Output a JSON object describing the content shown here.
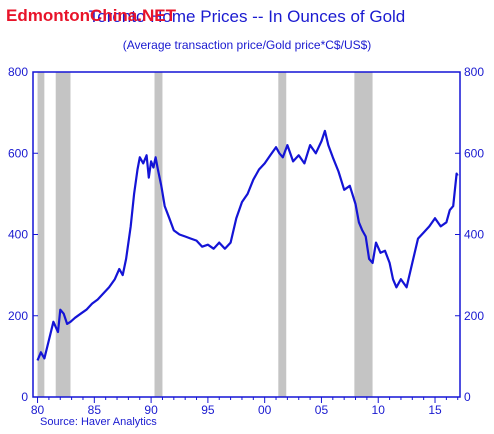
{
  "watermark": "EdmontonChina.NET",
  "chart_data": {
    "type": "line",
    "title": "Toronto Home Prices -- In Ounces of Gold",
    "subtitle": "(Average transaction price/Gold price*C$/US$)",
    "source": "Source: Haver Analytics",
    "ylim": [
      0,
      800
    ],
    "xlim": [
      1979.6,
      2017.2
    ],
    "y_ticks": [
      0,
      200,
      400,
      600,
      800
    ],
    "y_tick_labels": [
      "0",
      "200",
      "400",
      "600",
      "800"
    ],
    "x_ticks": [
      1980,
      1985,
      1990,
      1995,
      2000,
      2005,
      2010,
      2015
    ],
    "x_tick_labels": [
      "80",
      "85",
      "90",
      "95",
      "00",
      "05",
      "10",
      "15"
    ],
    "recessions": [
      [
        1980.0,
        1980.6
      ],
      [
        1981.6,
        1982.9
      ],
      [
        1990.3,
        1991.0
      ],
      [
        2001.2,
        2001.9
      ],
      [
        2007.9,
        2009.5
      ]
    ],
    "series": [
      {
        "color": "#1414d6",
        "x": [
          1980.0,
          1980.3,
          1980.6,
          1981.0,
          1981.4,
          1981.8,
          1982.0,
          1982.3,
          1982.6,
          1982.9,
          1983.3,
          1983.8,
          1984.3,
          1984.8,
          1985.3,
          1985.8,
          1986.3,
          1986.8,
          1987.2,
          1987.5,
          1987.8,
          1988.2,
          1988.5,
          1988.8,
          1989.0,
          1989.3,
          1989.6,
          1989.8,
          1990.0,
          1990.2,
          1990.4,
          1990.6,
          1990.9,
          1991.2,
          1991.6,
          1992.0,
          1992.5,
          1993.0,
          1993.5,
          1994.0,
          1994.5,
          1995.0,
          1995.5,
          1996.0,
          1996.5,
          1997.0,
          1997.5,
          1998.0,
          1998.5,
          1999.0,
          1999.5,
          2000.0,
          2000.5,
          2001.0,
          2001.3,
          2001.6,
          2002.0,
          2002.5,
          2003.0,
          2003.5,
          2004.0,
          2004.5,
          2005.0,
          2005.3,
          2005.6,
          2006.0,
          2006.5,
          2007.0,
          2007.5,
          2008.0,
          2008.3,
          2008.6,
          2008.9,
          2009.2,
          2009.5,
          2009.8,
          2010.2,
          2010.6,
          2011.0,
          2011.3,
          2011.6,
          2012.0,
          2012.5,
          2013.0,
          2013.5,
          2014.0,
          2014.5,
          2015.0,
          2015.5,
          2016.0,
          2016.3,
          2016.6,
          2016.9,
          2017.0
        ],
        "y": [
          90,
          110,
          95,
          140,
          185,
          160,
          215,
          205,
          180,
          185,
          195,
          205,
          215,
          230,
          240,
          255,
          270,
          290,
          315,
          300,
          340,
          420,
          500,
          560,
          590,
          575,
          595,
          540,
          580,
          565,
          590,
          560,
          520,
          470,
          440,
          410,
          400,
          395,
          390,
          385,
          370,
          375,
          365,
          380,
          365,
          380,
          440,
          480,
          500,
          535,
          560,
          575,
          595,
          615,
          600,
          590,
          620,
          580,
          595,
          575,
          620,
          600,
          630,
          655,
          620,
          590,
          555,
          510,
          520,
          475,
          430,
          410,
          395,
          340,
          330,
          380,
          355,
          360,
          330,
          290,
          270,
          290,
          270,
          330,
          390,
          405,
          420,
          440,
          420,
          430,
          460,
          470,
          550,
          545
        ]
      }
    ]
  }
}
